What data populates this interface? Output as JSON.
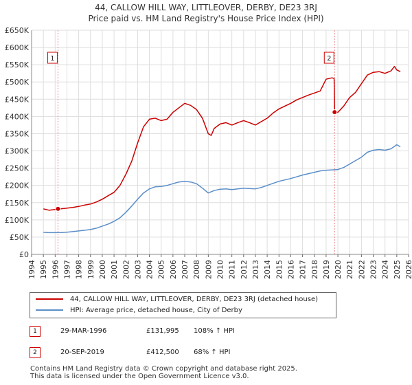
{
  "title_line1": "44, CALLOW HILL WAY, LITTLEOVER, DERBY, DE23 3RJ",
  "title_line2": "Price paid vs. HM Land Registry's House Price Index (HPI)",
  "chart_data": {
    "type": "line",
    "title": "44, CALLOW HILL WAY, LITTLEOVER, DERBY, DE23 3RJ",
    "subtitle": "Price paid vs. HM Land Registry's House Price Index (HPI)",
    "xlabel": "",
    "ylabel": "",
    "xlim": [
      1994,
      2026
    ],
    "ylim": [
      0,
      650000
    ],
    "y_ticks": [
      0,
      50000,
      100000,
      150000,
      200000,
      250000,
      300000,
      350000,
      400000,
      450000,
      500000,
      550000,
      600000,
      650000
    ],
    "y_tick_labels": [
      "£0",
      "£50K",
      "£100K",
      "£150K",
      "£200K",
      "£250K",
      "£300K",
      "£350K",
      "£400K",
      "£450K",
      "£500K",
      "£550K",
      "£600K",
      "£650K"
    ],
    "x_ticks": [
      1994,
      1995,
      1996,
      1997,
      1998,
      1999,
      2000,
      2001,
      2002,
      2003,
      2004,
      2005,
      2006,
      2007,
      2008,
      2009,
      2010,
      2011,
      2012,
      2013,
      2014,
      2015,
      2016,
      2017,
      2018,
      2019,
      2020,
      2021,
      2022,
      2023,
      2024,
      2025,
      2026
    ],
    "x_tick_labels": [
      "1994",
      "1995",
      "1996",
      "1997",
      "1998",
      "1999",
      "2000",
      "2001",
      "2002",
      "2003",
      "2004",
      "2005",
      "2006",
      "2007",
      "2008",
      "2009",
      "2010",
      "2011",
      "2012",
      "2013",
      "2014",
      "2015",
      "2016",
      "2017",
      "2018",
      "2019",
      "2020",
      "2021",
      "2022",
      "2023",
      "2024",
      "2025",
      "2026"
    ],
    "grid": true,
    "series": [
      {
        "name": "44, CALLOW HILL WAY, LITTLEOVER, DERBY, DE23 3RJ (detached house)",
        "color": "#cc0000",
        "x": [
          1995.0,
          1995.5,
          1996.0,
          1996.24,
          1996.5,
          1997.0,
          1997.5,
          1998.0,
          1998.5,
          1999.0,
          1999.5,
          2000.0,
          2000.5,
          2001.0,
          2001.5,
          2002.0,
          2002.5,
          2003.0,
          2003.5,
          2004.0,
          2004.5,
          2005.0,
          2005.5,
          2006.0,
          2006.5,
          2007.0,
          2007.5,
          2008.0,
          2008.5,
          2009.0,
          2009.25,
          2009.5,
          2010.0,
          2010.5,
          2011.0,
          2011.5,
          2012.0,
          2012.5,
          2013.0,
          2013.5,
          2014.0,
          2014.5,
          2015.0,
          2015.5,
          2016.0,
          2016.5,
          2017.0,
          2017.5,
          2018.0,
          2018.5,
          2019.0,
          2019.5,
          2019.68,
          2019.72,
          2020.0,
          2020.5,
          2021.0,
          2021.5,
          2022.0,
          2022.5,
          2023.0,
          2023.5,
          2024.0,
          2024.5,
          2024.8,
          2025.0,
          2025.3
        ],
        "values": [
          132000,
          128000,
          130000,
          131995,
          132000,
          134000,
          136000,
          139000,
          143000,
          146000,
          152000,
          160000,
          170000,
          180000,
          200000,
          232000,
          270000,
          323000,
          370000,
          392000,
          395000,
          388000,
          392000,
          412000,
          425000,
          438000,
          432000,
          420000,
          395000,
          350000,
          345000,
          365000,
          378000,
          382000,
          375000,
          382000,
          388000,
          382000,
          375000,
          385000,
          395000,
          410000,
          422000,
          430000,
          438000,
          448000,
          455000,
          462000,
          468000,
          474000,
          508000,
          512000,
          510000,
          412500,
          412000,
          430000,
          455000,
          470000,
          495000,
          520000,
          528000,
          530000,
          525000,
          532000,
          545000,
          535000,
          530000
        ]
      },
      {
        "name": "HPI: Average price, detached house, City of Derby",
        "color": "#5a8ec8",
        "x": [
          1995.0,
          1995.5,
          1996.0,
          1996.5,
          1997.0,
          1997.5,
          1998.0,
          1998.5,
          1999.0,
          1999.5,
          2000.0,
          2000.5,
          2001.0,
          2001.5,
          2002.0,
          2002.5,
          2003.0,
          2003.5,
          2004.0,
          2004.5,
          2005.0,
          2005.5,
          2006.0,
          2006.5,
          2007.0,
          2007.5,
          2008.0,
          2008.5,
          2009.0,
          2009.5,
          2010.0,
          2010.5,
          2011.0,
          2011.5,
          2012.0,
          2012.5,
          2013.0,
          2013.5,
          2014.0,
          2014.5,
          2015.0,
          2015.5,
          2016.0,
          2016.5,
          2017.0,
          2017.5,
          2018.0,
          2018.5,
          2019.0,
          2019.5,
          2020.0,
          2020.5,
          2021.0,
          2021.5,
          2022.0,
          2022.5,
          2023.0,
          2023.5,
          2024.0,
          2024.5,
          2025.0,
          2025.3
        ],
        "values": [
          64000,
          63000,
          63000,
          63500,
          64500,
          66000,
          68000,
          70000,
          72000,
          76000,
          82000,
          88000,
          96000,
          106000,
          122000,
          140000,
          160000,
          178000,
          190000,
          196000,
          197000,
          200000,
          205000,
          210000,
          212000,
          210000,
          205000,
          192000,
          178000,
          185000,
          189000,
          190000,
          188000,
          190000,
          192000,
          191000,
          190000,
          194000,
          200000,
          206000,
          212000,
          216000,
          220000,
          225000,
          230000,
          234000,
          238000,
          242000,
          244000,
          245000,
          246000,
          252000,
          262000,
          272000,
          282000,
          296000,
          302000,
          304000,
          302000,
          306000,
          318000,
          312000
        ]
      }
    ],
    "markers": [
      {
        "label": "1",
        "x": 1996.24,
        "value": 131995
      },
      {
        "label": "2",
        "x": 2019.72,
        "value": 412500
      }
    ]
  },
  "legend": {
    "property_label": "44, CALLOW HILL WAY, LITTLEOVER, DERBY, DE23 3RJ (detached house)",
    "hpi_label": "HPI: Average price, detached house, City of Derby",
    "property_color": "#cc0000",
    "hpi_color": "#5a8ec8"
  },
  "sales": [
    {
      "num": "1",
      "date": "29-MAR-1996",
      "price": "£131,995",
      "hpi": "108% ↑ HPI"
    },
    {
      "num": "2",
      "date": "20-SEP-2019",
      "price": "£412,500",
      "hpi": "68% ↑ HPI"
    }
  ],
  "footer": {
    "line1": "Contains HM Land Registry data © Crown copyright and database right 2025.",
    "line2": "This data is licensed under the Open Government Licence v3.0."
  }
}
